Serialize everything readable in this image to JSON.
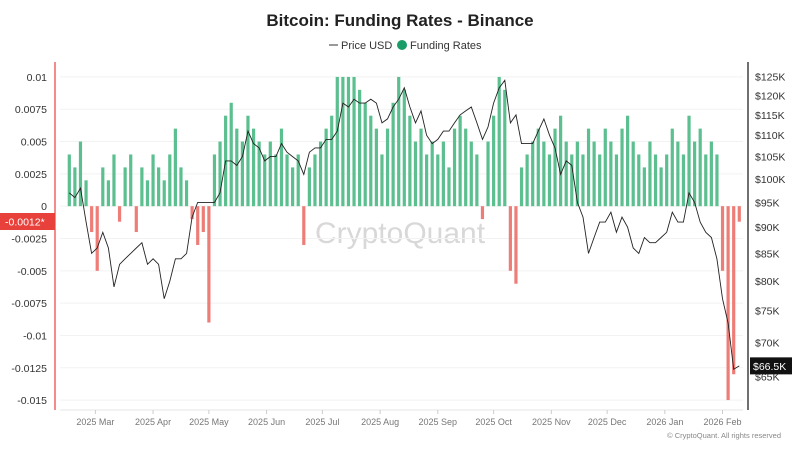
{
  "chart_data": {
    "type": "bar+line",
    "title": "Bitcoin: Funding Rates - Binance",
    "legend": {
      "placement": "top-center",
      "entries": [
        "Price USD",
        "Funding Rates"
      ]
    },
    "watermark": "CryptoQuant",
    "copyright": "© CryptoQuant. All rights reserved",
    "colors": {
      "positive": "#5cbf8f",
      "negative": "#ee7d78",
      "price": "#222222",
      "legend_funding": "#1a9c68",
      "highlight_left": "#e8413c",
      "highlight_right": "#111111"
    },
    "x_ticks": [
      "2025 Mar",
      "2025 Apr",
      "2025 May",
      "2025 Jun",
      "2025 Jul",
      "2025 Aug",
      "2025 Sep",
      "2025 Oct",
      "2025 Nov",
      "2025 Dec",
      "2026 Jan",
      "2026 Feb"
    ],
    "x_tick_dates": [
      "2025-03-01",
      "2025-04-01",
      "2025-05-01",
      "2025-06-01",
      "2025-07-01",
      "2025-08-01",
      "2025-09-01",
      "2025-10-01",
      "2025-11-01",
      "2025-12-01",
      "2026-01-01",
      "2026-02-01"
    ],
    "xlim": [
      "2025-02-10",
      "2026-02-12"
    ],
    "left_axis": {
      "ticks": [
        0.01,
        0.0075,
        0.005,
        0.0025,
        0,
        -0.0025,
        -0.005,
        -0.0075,
        -0.01,
        -0.0125,
        -0.015
      ],
      "ylim": [
        -0.016,
        0.011
      ],
      "highlight_label": "-0.0012*"
    },
    "right_axis": {
      "scale": "log",
      "ticks": [
        "$125K",
        "$120K",
        "$115K",
        "$110K",
        "$105K",
        "$100K",
        "$95K",
        "$90K",
        "$85K",
        "$80K",
        "$75K",
        "$70K",
        "$65K"
      ],
      "tick_values": [
        125,
        120,
        115,
        110,
        105,
        100,
        95,
        90,
        85,
        80,
        75,
        70,
        65
      ],
      "ylim_k": [
        60,
        128.5
      ],
      "highlight_label": "$66.5K",
      "highlight_value": 66.5
    },
    "grid": true,
    "dates": [
      "2025-02-15",
      "2025-02-18",
      "2025-02-21",
      "2025-02-24",
      "2025-02-27",
      "2025-03-02",
      "2025-03-05",
      "2025-03-08",
      "2025-03-11",
      "2025-03-14",
      "2025-03-17",
      "2025-03-20",
      "2025-03-23",
      "2025-03-26",
      "2025-03-29",
      "2025-04-01",
      "2025-04-04",
      "2025-04-07",
      "2025-04-10",
      "2025-04-13",
      "2025-04-16",
      "2025-04-19",
      "2025-04-22",
      "2025-04-25",
      "2025-04-28",
      "2025-05-01",
      "2025-05-04",
      "2025-05-07",
      "2025-05-10",
      "2025-05-13",
      "2025-05-16",
      "2025-05-19",
      "2025-05-22",
      "2025-05-25",
      "2025-05-28",
      "2025-05-31",
      "2025-06-03",
      "2025-06-06",
      "2025-06-09",
      "2025-06-12",
      "2025-06-15",
      "2025-06-18",
      "2025-06-21",
      "2025-06-24",
      "2025-06-27",
      "2025-06-30",
      "2025-07-03",
      "2025-07-06",
      "2025-07-09",
      "2025-07-12",
      "2025-07-15",
      "2025-07-18",
      "2025-07-21",
      "2025-07-24",
      "2025-07-27",
      "2025-07-30",
      "2025-08-02",
      "2025-08-05",
      "2025-08-08",
      "2025-08-11",
      "2025-08-14",
      "2025-08-17",
      "2025-08-20",
      "2025-08-23",
      "2025-08-26",
      "2025-08-29",
      "2025-09-01",
      "2025-09-04",
      "2025-09-07",
      "2025-09-10",
      "2025-09-13",
      "2025-09-16",
      "2025-09-19",
      "2025-09-22",
      "2025-09-25",
      "2025-09-28",
      "2025-10-01",
      "2025-10-04",
      "2025-10-07",
      "2025-10-10",
      "2025-10-13",
      "2025-10-16",
      "2025-10-19",
      "2025-10-22",
      "2025-10-25",
      "2025-10-28",
      "2025-10-31",
      "2025-11-03",
      "2025-11-06",
      "2025-11-09",
      "2025-11-12",
      "2025-11-15",
      "2025-11-18",
      "2025-11-21",
      "2025-11-24",
      "2025-11-27",
      "2025-11-30",
      "2025-12-03",
      "2025-12-06",
      "2025-12-09",
      "2025-12-12",
      "2025-12-15",
      "2025-12-18",
      "2025-12-21",
      "2025-12-24",
      "2025-12-27",
      "2025-12-30",
      "2026-01-02",
      "2026-01-05",
      "2026-01-08",
      "2026-01-11",
      "2026-01-14",
      "2026-01-17",
      "2026-01-20",
      "2026-01-23",
      "2026-01-26",
      "2026-01-29",
      "2026-02-01",
      "2026-02-04",
      "2026-02-07",
      "2026-02-10"
    ],
    "series": [
      {
        "name": "Funding Rates",
        "type": "bar",
        "values": [
          0.004,
          0.003,
          0.005,
          0.002,
          -0.002,
          -0.005,
          0.003,
          0.002,
          0.004,
          -0.0012,
          0.003,
          0.004,
          -0.002,
          0.003,
          0.002,
          0.004,
          0.003,
          0.002,
          0.004,
          0.006,
          0.003,
          0.002,
          -0.001,
          -0.003,
          -0.002,
          -0.009,
          0.004,
          0.005,
          0.007,
          0.008,
          0.006,
          0.005,
          0.007,
          0.006,
          0.005,
          0.004,
          0.005,
          0.004,
          0.006,
          0.004,
          0.003,
          0.004,
          -0.003,
          0.003,
          0.004,
          0.005,
          0.006,
          0.007,
          0.01,
          0.01,
          0.01,
          0.01,
          0.009,
          0.008,
          0.007,
          0.006,
          0.004,
          0.006,
          0.008,
          0.01,
          0.009,
          0.007,
          0.005,
          0.006,
          0.004,
          0.005,
          0.004,
          0.005,
          0.003,
          0.006,
          0.007,
          0.006,
          0.005,
          0.004,
          -0.001,
          0.005,
          0.007,
          0.01,
          0.009,
          -0.005,
          -0.006,
          0.003,
          0.004,
          0.005,
          0.006,
          0.005,
          0.004,
          0.006,
          0.007,
          0.005,
          0.004,
          0.005,
          0.004,
          0.006,
          0.005,
          0.004,
          0.006,
          0.005,
          0.004,
          0.006,
          0.007,
          0.005,
          0.004,
          0.003,
          0.005,
          0.004,
          0.003,
          0.004,
          0.006,
          0.005,
          0.004,
          0.007,
          0.005,
          0.006,
          0.004,
          0.005,
          0.004,
          -0.005,
          -0.015,
          -0.013,
          -0.0012
        ]
      },
      {
        "name": "Price USD",
        "type": "line",
        "unit": "K USD",
        "values": [
          97,
          96,
          98,
          91,
          85,
          86,
          89,
          86,
          79,
          83,
          84,
          85,
          86,
          87,
          83,
          84,
          83,
          77,
          80,
          84,
          84,
          85,
          92,
          95,
          95,
          95,
          95,
          97,
          104,
          104,
          103,
          105,
          111,
          108,
          107,
          104,
          105,
          105,
          108,
          106,
          105,
          104,
          101,
          106,
          107,
          107,
          109,
          109,
          111,
          118,
          117,
          119,
          118,
          118,
          119,
          118,
          113,
          114,
          117,
          119,
          122,
          117,
          113,
          116,
          110,
          108,
          109,
          111,
          111,
          113,
          115,
          116,
          117,
          113,
          109,
          112,
          118,
          122,
          124,
          113,
          115,
          108,
          108,
          108,
          111,
          114,
          110,
          107,
          101,
          104,
          103,
          95,
          92,
          85,
          88,
          91,
          91,
          93,
          89,
          92,
          90,
          86,
          85,
          88,
          87,
          87,
          88,
          89,
          93,
          91,
          91,
          97,
          95,
          91,
          89,
          88,
          84,
          77,
          73,
          66,
          66.5
        ]
      }
    ]
  }
}
